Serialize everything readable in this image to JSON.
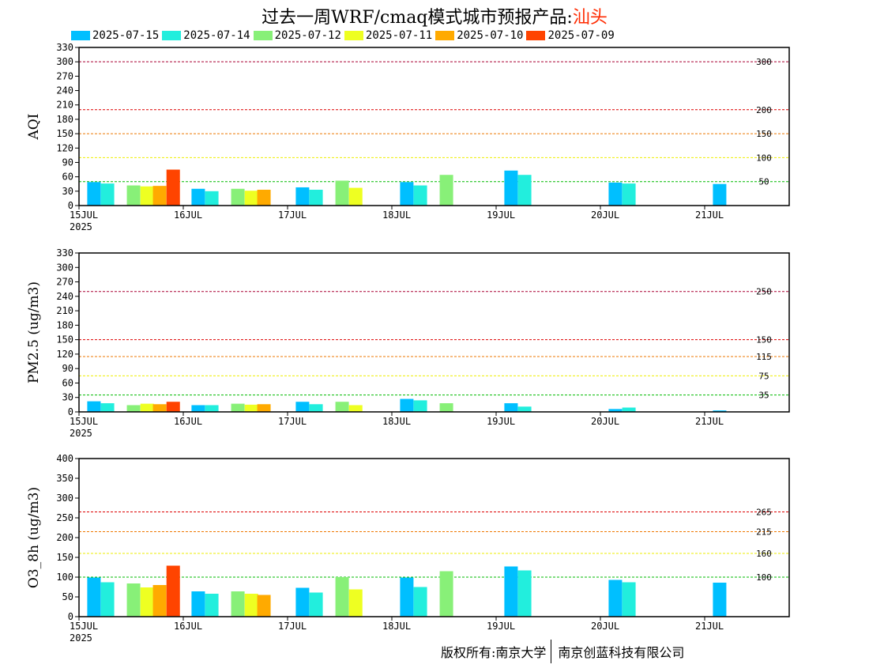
{
  "title": {
    "text": "过去一周WRF/cmaq模式城市预报产品:",
    "city": "汕头"
  },
  "legend": [
    {
      "label": "2025-07-15",
      "color": "#00bfff"
    },
    {
      "label": "2025-07-14",
      "color": "#22eedd"
    },
    {
      "label": "2025-07-12",
      "color": "#88f078"
    },
    {
      "label": "2025-07-11",
      "color": "#eeff22"
    },
    {
      "label": "2025-07-10",
      "color": "#ffaa00"
    },
    {
      "label": "2025-07-09",
      "color": "#ff4400"
    }
  ],
  "copyright": {
    "left": "版权所有:南京大学",
    "right": "南京创蓝科技有限公司"
  },
  "x_axis": {
    "labels": [
      "15JUL",
      "16JUL",
      "17JUL",
      "18JUL",
      "19JUL",
      "20JUL",
      "21JUL"
    ],
    "year": "2025"
  },
  "chart_data": [
    {
      "type": "bar",
      "ylabel": "AQI",
      "ylim": [
        0,
        330
      ],
      "yticks": [
        0,
        30,
        60,
        90,
        120,
        150,
        180,
        210,
        240,
        270,
        300,
        330
      ],
      "thresholds": [
        {
          "value": 300,
          "label": "300",
          "color": "#aa0033"
        },
        {
          "value": 200,
          "label": "200",
          "color": "#dd0000"
        },
        {
          "value": 150,
          "label": "150",
          "color": "#ee7700"
        },
        {
          "value": 100,
          "label": "100",
          "color": "#eeee00"
        },
        {
          "value": 50,
          "label": "50",
          "color": "#00bb00"
        }
      ],
      "series": [
        {
          "x": [
            0.06,
            1.06,
            2.06,
            3.06,
            4.06,
            5.06,
            6.06
          ],
          "values": [
            49,
            35,
            38,
            49,
            73,
            48,
            45
          ]
        },
        {
          "x": [
            0.19,
            1.19,
            2.19,
            3.19,
            4.19,
            5.19
          ],
          "values": [
            46,
            30,
            33,
            42,
            64,
            46
          ]
        },
        {
          "x": [
            0.44,
            1.44,
            2.44,
            3.44
          ],
          "values": [
            42,
            35,
            52,
            64
          ]
        },
        {
          "x": [
            0.57,
            1.57,
            2.57
          ],
          "values": [
            40,
            31,
            37
          ]
        },
        {
          "x": [
            0.69,
            1.69
          ],
          "values": [
            41,
            33
          ]
        },
        {
          "x": [
            0.82
          ],
          "values": [
            75
          ]
        }
      ]
    },
    {
      "type": "bar",
      "ylabel": "PM2.5 (ug/m3)",
      "ylim": [
        0,
        330
      ],
      "yticks": [
        0,
        30,
        60,
        90,
        120,
        150,
        180,
        210,
        240,
        270,
        300,
        330
      ],
      "thresholds": [
        {
          "value": 250,
          "label": "250",
          "color": "#aa0033"
        },
        {
          "value": 150,
          "label": "150",
          "color": "#dd0000"
        },
        {
          "value": 115,
          "label": "115",
          "color": "#ee7700"
        },
        {
          "value": 75,
          "label": "75",
          "color": "#eeee00"
        },
        {
          "value": 35,
          "label": "35",
          "color": "#00bb00"
        }
      ],
      "series": [
        {
          "x": [
            0.06,
            1.06,
            2.06,
            3.06,
            4.06,
            5.06,
            6.06
          ],
          "values": [
            22,
            14,
            21,
            27,
            18,
            6,
            3
          ]
        },
        {
          "x": [
            0.19,
            1.19,
            2.19,
            3.19,
            4.19,
            5.19
          ],
          "values": [
            18,
            14,
            16,
            24,
            11,
            9
          ]
        },
        {
          "x": [
            0.44,
            1.44,
            2.44,
            3.44
          ],
          "values": [
            14,
            17,
            21,
            18
          ]
        },
        {
          "x": [
            0.57,
            1.57,
            2.57
          ],
          "values": [
            17,
            15,
            14
          ]
        },
        {
          "x": [
            0.69,
            1.69
          ],
          "values": [
            16,
            16
          ]
        },
        {
          "x": [
            0.82
          ],
          "values": [
            21
          ]
        }
      ]
    },
    {
      "type": "bar",
      "ylabel": "O3_8h (ug/m3)",
      "ylim": [
        0,
        400
      ],
      "yticks": [
        0,
        50,
        100,
        150,
        200,
        250,
        300,
        350,
        400
      ],
      "thresholds": [
        {
          "value": 265,
          "label": "265",
          "color": "#dd0000"
        },
        {
          "value": 215,
          "label": "215",
          "color": "#ee7700"
        },
        {
          "value": 160,
          "label": "160",
          "color": "#eeee00"
        },
        {
          "value": 100,
          "label": "100",
          "color": "#00bb00"
        }
      ],
      "series": [
        {
          "x": [
            0.06,
            1.06,
            2.06,
            3.06,
            4.06,
            5.06,
            6.06
          ],
          "values": [
            99,
            64,
            73,
            99,
            127,
            93,
            86
          ]
        },
        {
          "x": [
            0.19,
            1.19,
            2.19,
            3.19,
            4.19,
            5.19
          ],
          "values": [
            87,
            58,
            61,
            75,
            117,
            87
          ]
        },
        {
          "x": [
            0.44,
            1.44,
            2.44,
            3.44
          ],
          "values": [
            84,
            64,
            100,
            115
          ]
        },
        {
          "x": [
            0.57,
            1.57,
            2.57
          ],
          "values": [
            74,
            58,
            69
          ]
        },
        {
          "x": [
            0.69,
            1.69
          ],
          "values": [
            80,
            55
          ]
        },
        {
          "x": [
            0.82
          ],
          "values": [
            129
          ]
        }
      ]
    }
  ]
}
